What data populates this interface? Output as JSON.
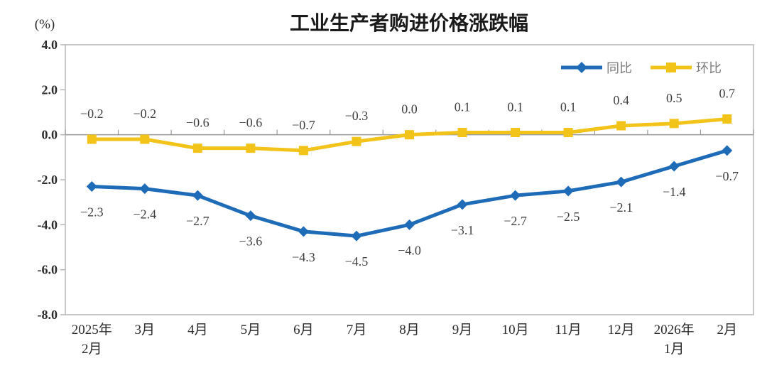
{
  "chart_data": {
    "type": "line",
    "title": "工业生产者购进价格涨跌幅",
    "unit_label": "(%)",
    "legend_position": "top-right",
    "grid": false,
    "categories": [
      [
        "2025年",
        "2月"
      ],
      [
        "3月"
      ],
      [
        "4月"
      ],
      [
        "5月"
      ],
      [
        "6月"
      ],
      [
        "7月"
      ],
      [
        "8月"
      ],
      [
        "9月"
      ],
      [
        "10月"
      ],
      [
        "11月"
      ],
      [
        "12月"
      ],
      [
        "2026年",
        "1月"
      ],
      [
        "2月"
      ]
    ],
    "series": [
      {
        "name": "同比",
        "color": "#1E6CB8",
        "marker": "diamond",
        "label_position": "below",
        "values": [
          -2.3,
          -2.4,
          -2.7,
          -3.6,
          -4.3,
          -4.5,
          -4.0,
          -3.1,
          -2.7,
          -2.5,
          -2.1,
          -1.4,
          -0.7
        ]
      },
      {
        "name": "环比",
        "color": "#F2C318",
        "marker": "square",
        "label_position": "above",
        "values": [
          -0.2,
          -0.2,
          -0.6,
          -0.6,
          -0.7,
          -0.3,
          0.0,
          0.1,
          0.1,
          0.1,
          0.4,
          0.5,
          0.7
        ]
      }
    ],
    "y_axis": {
      "min": -8.0,
      "max": 4.0,
      "step": 2.0,
      "tick_labels": [
        "4.0",
        "2.0",
        "0.0",
        "-2.0",
        "-4.0",
        "-6.0",
        "-8.0"
      ]
    },
    "colors": {
      "title_text": "#1a1a1a",
      "axis_text": "#2b2b2b",
      "data_label_text": "#3f3f3f",
      "legend_text": "#7a7a7a",
      "plot_border": "#b5b5b5",
      "zero_line": "#999999"
    }
  }
}
